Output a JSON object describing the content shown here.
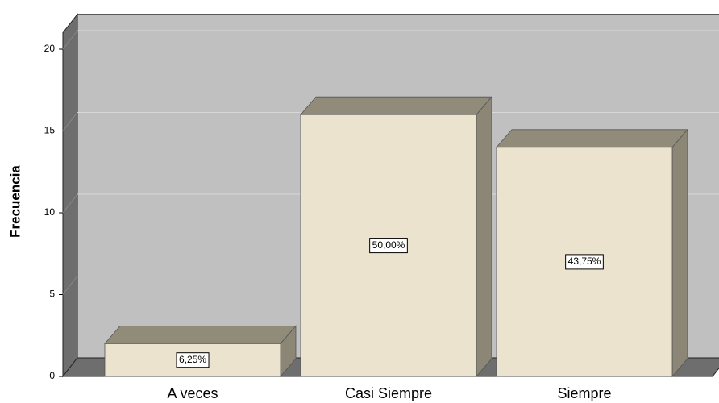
{
  "chart_data": {
    "type": "bar3d",
    "y_label": "Frecuencia",
    "categories": [
      "A veces",
      "Casi Siempre",
      "Siempre"
    ],
    "values": [
      2,
      16,
      14
    ],
    "percentages": [
      6.25,
      50,
      43.75
    ],
    "percentage_labels": [
      "6,25%",
      "50,00%",
      "43,75%"
    ],
    "color": "#ebe3cd",
    "ylim": [
      0,
      21
    ],
    "yticks": [
      0,
      5,
      10,
      15,
      20
    ],
    "grid": true
  }
}
